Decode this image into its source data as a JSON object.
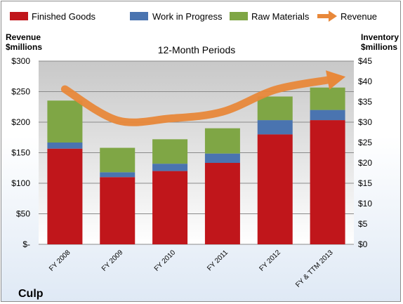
{
  "chart_data": {
    "type": "bar",
    "title": "12-Month Periods",
    "company": "Culp",
    "categories": [
      "FY 2008",
      "FY 2009",
      "FY 2010",
      "FY 2011",
      "FY 2012",
      "FY & TTM 2013"
    ],
    "left_axis": {
      "label_line1": "Revenue",
      "label_line2": "$millions",
      "ticks": [
        "$-",
        "$50",
        "$100",
        "$150",
        "$200",
        "$250",
        "$300"
      ],
      "range": [
        0,
        300
      ]
    },
    "right_axis": {
      "label_line1": "Inventory",
      "label_line2": "$millions",
      "ticks": [
        "$0",
        "$5",
        "$10",
        "$15",
        "$20",
        "$25",
        "$30",
        "$35",
        "$40",
        "$45"
      ],
      "range": [
        0,
        45
      ]
    },
    "stacked_series": [
      {
        "name": "Finished Goods",
        "color": "#c0161b",
        "values": [
          23.5,
          16.5,
          18.0,
          20.0,
          27.0,
          30.5
        ]
      },
      {
        "name": "Work in Progress",
        "color": "#4a74b0",
        "values": [
          1.5,
          1.2,
          1.8,
          2.3,
          3.5,
          2.5
        ]
      },
      {
        "name": "Raw Materials",
        "color": "#7fa645",
        "values": [
          10.3,
          6.0,
          6.0,
          6.2,
          5.8,
          5.5
        ]
      }
    ],
    "line_series": {
      "name": "Revenue",
      "color": "#e8883a",
      "values": [
        254,
        203,
        206,
        217,
        253,
        269
      ]
    },
    "grid": true
  }
}
